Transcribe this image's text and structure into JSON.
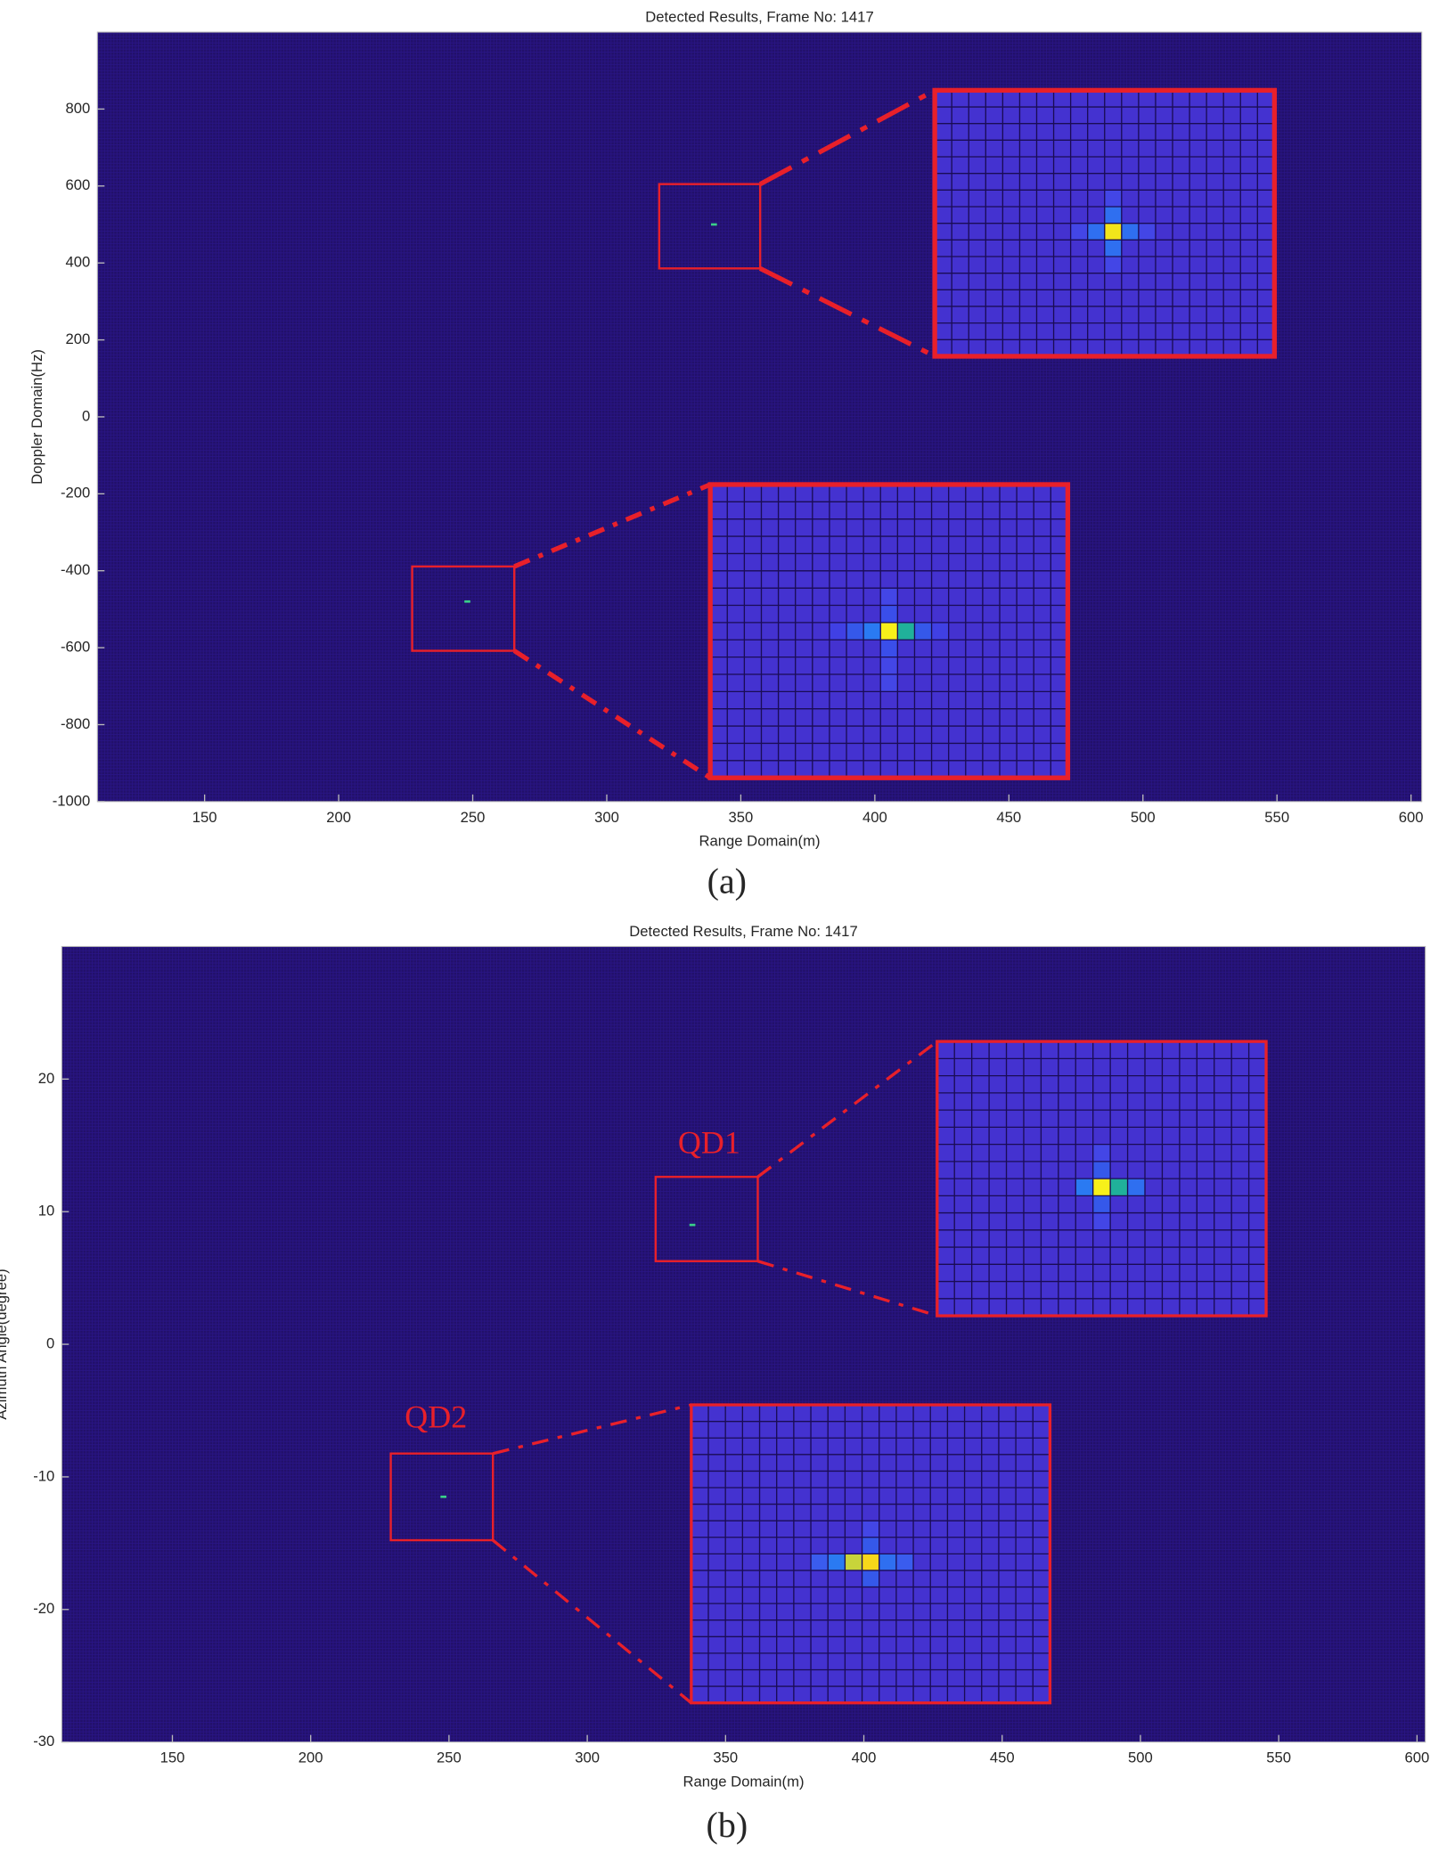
{
  "chart_data": [
    {
      "type": "heatmap",
      "title": "Detected Results, Frame No: 1417",
      "x_label": "Range Domain(m)",
      "y_label": "Doppler Domain(Hz)",
      "panel_label": "(a)",
      "xlim": [
        110,
        604
      ],
      "ylim": [
        -1000,
        1000
      ],
      "xticks": [
        150,
        200,
        250,
        300,
        350,
        400,
        450,
        500,
        550,
        600
      ],
      "yticks": [
        -1000,
        -800,
        -600,
        -400,
        -200,
        0,
        200,
        400,
        600,
        800
      ],
      "background_color": "#220f6a",
      "detections": {
        "x": [
          340,
          248
        ],
        "y": [
          500,
          -480
        ]
      }
    },
    {
      "type": "heatmap",
      "title": "Detected Results, Frame No: 1417",
      "x_label": "Range Domain(m)",
      "y_label": "Azimuth Angle(degree)",
      "panel_label": "(b)",
      "xlim": [
        110,
        603
      ],
      "ylim": [
        -30,
        30
      ],
      "xticks": [
        150,
        200,
        250,
        300,
        350,
        400,
        450,
        500,
        550,
        600
      ],
      "yticks": [
        -30,
        -20,
        -10,
        0,
        10,
        20
      ],
      "background_color": "#220f6a",
      "annotations": [
        "QD1",
        "QD2"
      ],
      "detections": {
        "x": [
          338,
          248
        ],
        "y": [
          9,
          -11.5
        ]
      }
    }
  ]
}
